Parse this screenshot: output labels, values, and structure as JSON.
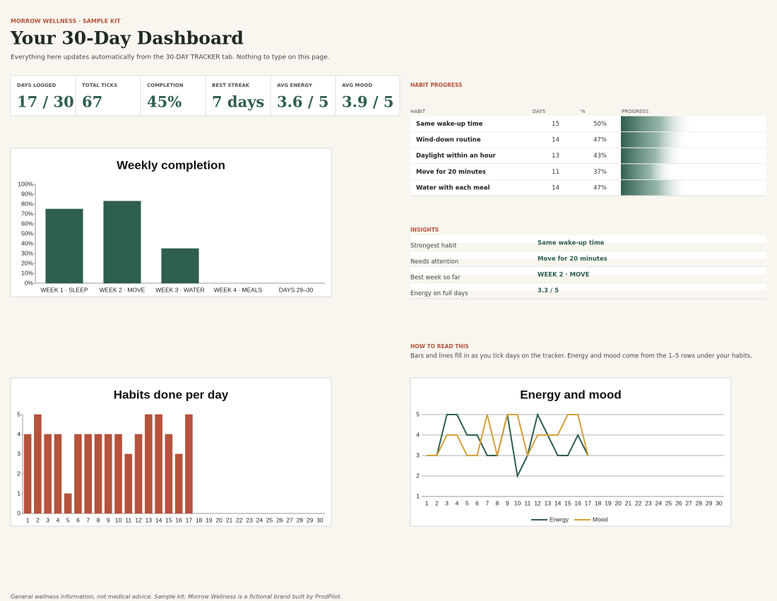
{
  "header": {
    "brand": "MORROW WELLNESS · SAMPLE KIT",
    "title": "Your 30-Day Dashboard",
    "subtitle": "Everything here updates automatically from the 30-DAY TRACKER tab. Nothing to type on this page."
  },
  "kpis": [
    {
      "label": "DAYS LOGGED",
      "value": "17 / 30"
    },
    {
      "label": "TOTAL TICKS",
      "value": "67"
    },
    {
      "label": "COMPLETION",
      "value": "45%"
    },
    {
      "label": "BEST STREAK",
      "value": "7 days"
    },
    {
      "label": "AVG ENERGY",
      "value": "3.6 / 5"
    },
    {
      "label": "AVG MOOD",
      "value": "3.9 / 5"
    }
  ],
  "habit_progress": {
    "title": "HABIT PROGRESS",
    "columns": [
      "HABIT",
      "DAYS",
      "%",
      "PROGRESS"
    ],
    "rows": [
      {
        "habit": "Same wake-up time",
        "days": 15,
        "pct": "50%"
      },
      {
        "habit": "Wind-down routine",
        "days": 14,
        "pct": "47%"
      },
      {
        "habit": "Daylight within an hour",
        "days": 13,
        "pct": "43%"
      },
      {
        "habit": "Move for 20 minutes",
        "days": 11,
        "pct": "37%"
      },
      {
        "habit": "Water with each meal",
        "days": 14,
        "pct": "47%"
      }
    ]
  },
  "insights": {
    "title": "INSIGHTS",
    "rows": [
      {
        "label": "Strongest habit",
        "value": "Same wake-up time"
      },
      {
        "label": "Needs attention",
        "value": "Move for 20 minutes"
      },
      {
        "label": "Best week so far",
        "value": "WEEK 2 · MOVE"
      },
      {
        "label": "Energy on full days",
        "value": "3.3 / 5"
      }
    ]
  },
  "how_to": {
    "title": "HOW TO READ THIS",
    "text": "Bars and lines fill in as you tick days on the tracker. Energy and mood come from the 1–5 rows under your habits."
  },
  "footer": "General wellness information, not medical advice. Sample kit: Morrow Wellness is a fictional brand built by ProdPilot.",
  "chart_data": [
    {
      "type": "bar",
      "title": "Weekly completion",
      "categories": [
        "WEEK 1 · SLEEP",
        "WEEK 2 · MOVE",
        "WEEK 3 · WATER",
        "WEEK 4 · MEALS",
        "DAYS 29–30"
      ],
      "values": [
        75,
        83,
        35,
        0,
        0
      ],
      "color": "#2e5e4e",
      "ylim": [
        0,
        100
      ],
      "yticks": [
        {
          "value": 0,
          "label": "0%"
        },
        {
          "value": 10,
          "label": "10%"
        },
        {
          "value": 20,
          "label": "20%"
        },
        {
          "value": 30,
          "label": "30%"
        },
        {
          "value": 40,
          "label": "40%"
        },
        {
          "value": 50,
          "label": "50%"
        },
        {
          "value": 60,
          "label": "60%"
        },
        {
          "value": 70,
          "label": "70%"
        },
        {
          "value": 80,
          "label": "80%"
        },
        {
          "value": 90,
          "label": "90%"
        },
        {
          "value": 100,
          "label": "100%"
        }
      ],
      "grid": false
    },
    {
      "type": "bar",
      "title": "Habits done per day",
      "categories": [
        1,
        2,
        3,
        4,
        5,
        6,
        7,
        8,
        9,
        10,
        11,
        12,
        13,
        14,
        15,
        16,
        17,
        18,
        19,
        20,
        21,
        22,
        23,
        24,
        25,
        26,
        27,
        28,
        29,
        30
      ],
      "values": [
        4,
        5,
        4,
        4,
        1,
        4,
        4,
        4,
        4,
        4,
        3,
        4,
        5,
        5,
        4,
        3,
        5,
        0,
        0,
        0,
        0,
        0,
        0,
        0,
        0,
        0,
        0,
        0,
        0,
        0
      ],
      "color": "#b5533c",
      "ylim": [
        0,
        5
      ],
      "yticks": [
        0,
        1,
        2,
        3,
        4,
        5
      ],
      "grid": false
    },
    {
      "type": "line",
      "title": "Energy and mood",
      "categories": [
        1,
        2,
        3,
        4,
        5,
        6,
        7,
        8,
        9,
        10,
        11,
        12,
        13,
        14,
        15,
        16,
        17,
        18,
        19,
        20,
        21,
        22,
        23,
        24,
        25,
        26,
        27,
        28,
        29,
        30
      ],
      "series": [
        {
          "name": "Energy",
          "color": "#2e5e4e",
          "values": [
            3,
            3,
            5,
            5,
            4,
            4,
            3,
            3,
            5,
            2,
            3,
            5,
            4,
            3,
            3,
            4,
            3,
            null,
            null,
            null,
            null,
            null,
            null,
            null,
            null,
            null,
            null,
            null,
            null,
            null
          ]
        },
        {
          "name": "Mood",
          "color": "#d4a03a",
          "values": [
            3,
            3,
            4,
            4,
            3,
            3,
            5,
            3,
            5,
            5,
            3,
            4,
            4,
            4,
            5,
            5,
            3,
            null,
            null,
            null,
            null,
            null,
            null,
            null,
            null,
            null,
            null,
            null,
            null,
            null
          ]
        }
      ],
      "ylim": [
        1,
        5
      ],
      "yticks": [
        1,
        2,
        3,
        4,
        5
      ],
      "grid": true,
      "legend": "bottom"
    }
  ]
}
